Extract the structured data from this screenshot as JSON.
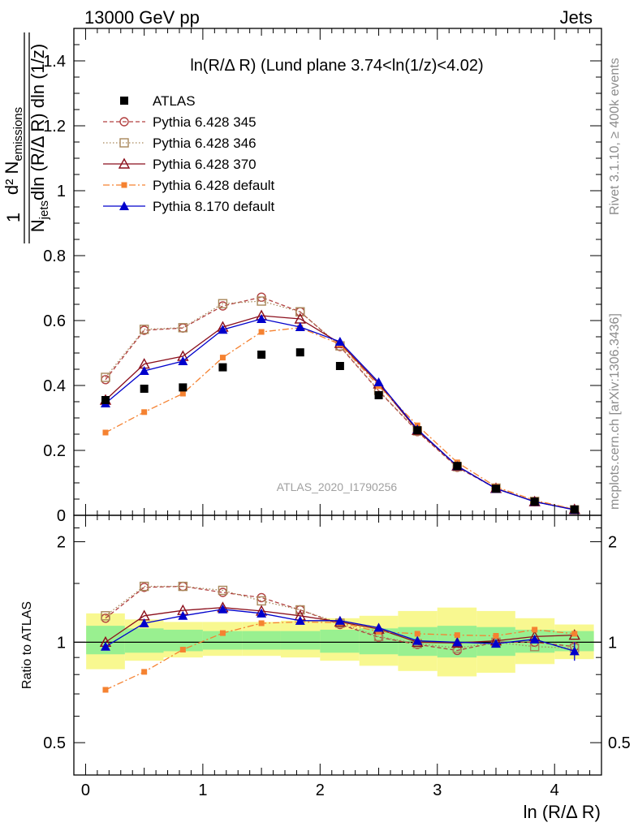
{
  "header": {
    "left": "13000 GeV pp",
    "right": "Jets"
  },
  "side": {
    "rivet": "Rivet 3.1.10, ≥ 400k events",
    "mcplots": "mcplots.cern.ch [arXiv:1306.3436]"
  },
  "analysis_id": "ATLAS_2020_I1790256",
  "colors": {
    "atlas": "#000000",
    "p345": "#b24040",
    "p346": "#a8875a",
    "p370": "#8b0f1c",
    "p6def": "#f58231",
    "p8def": "#0000cc",
    "band_inner": "#99f090",
    "band_outer": "#f8f890"
  },
  "chart_data": [
    {
      "type": "line",
      "title": "ln(R/Δ R) (Lund plane 3.74<ln(1/z)<4.02)",
      "ylabel_fraction_num": "d² N",
      "ylabel_num_sub": "emissions",
      "ylabel_fraction_den_a": "N",
      "ylabel_den_sub": "jets",
      "ylabel_fraction_den_b": "dln (R/Δ R) dln (1/z)",
      "ylabel_one": "1",
      "xlabel": "ln (R/Δ R)",
      "xlim": [
        -0.1,
        4.4
      ],
      "ylim": [
        0,
        1.5
      ],
      "yticks": [
        "0",
        "0.2",
        "0.4",
        "0.6",
        "0.8",
        "1",
        "1.2",
        "1.4"
      ],
      "x": [
        0.17,
        0.5,
        0.83,
        1.17,
        1.5,
        1.83,
        2.17,
        2.5,
        2.83,
        3.17,
        3.5,
        3.83,
        4.17
      ],
      "legend": [
        "ATLAS",
        "Pythia 6.428 345",
        "Pythia 6.428 346",
        "Pythia 6.428 370",
        "Pythia 6.428 default",
        "Pythia 8.170 default"
      ],
      "series": [
        {
          "name": "ATLAS",
          "values": [
            0.355,
            0.39,
            0.394,
            0.456,
            0.495,
            0.502,
            0.46,
            0.37,
            0.262,
            0.152,
            0.082,
            0.042,
            0.018
          ]
        },
        {
          "name": "Pythia 6.428 345",
          "values": [
            0.418,
            0.57,
            0.577,
            0.645,
            0.672,
            0.627,
            0.52,
            0.383,
            0.258,
            0.148,
            0.083,
            0.042,
            0.017
          ]
        },
        {
          "name": "Pythia 6.428 346",
          "values": [
            0.425,
            0.573,
            0.578,
            0.652,
            0.66,
            0.627,
            0.522,
            0.385,
            0.26,
            0.15,
            0.084,
            0.043,
            0.017
          ]
        },
        {
          "name": "Pythia 6.428 370",
          "values": [
            0.355,
            0.466,
            0.49,
            0.58,
            0.615,
            0.605,
            0.53,
            0.405,
            0.262,
            0.152,
            0.083,
            0.042,
            0.018
          ]
        },
        {
          "name": "Pythia 6.428 default",
          "values": [
            0.255,
            0.318,
            0.375,
            0.486,
            0.565,
            0.578,
            0.527,
            0.398,
            0.277,
            0.163,
            0.088,
            0.046,
            0.019
          ]
        },
        {
          "name": "Pythia 8.170 default",
          "values": [
            0.345,
            0.445,
            0.475,
            0.572,
            0.605,
            0.58,
            0.535,
            0.41,
            0.265,
            0.152,
            0.082,
            0.042,
            0.017
          ]
        }
      ]
    },
    {
      "type": "line",
      "ylabel": "Ratio to ATLAS",
      "xlabel": "ln (R/Δ R)",
      "xlim": [
        -0.1,
        4.4
      ],
      "ylim": [
        0.4,
        2.4
      ],
      "yscale": "log",
      "yticks": [
        "0.5",
        "1",
        "2"
      ],
      "xticks": [
        "0",
        "1",
        "2",
        "3",
        "4"
      ],
      "x": [
        0.17,
        0.5,
        0.83,
        1.17,
        1.5,
        1.83,
        2.17,
        2.5,
        2.83,
        3.17,
        3.5,
        3.83,
        4.17
      ],
      "band_inner": [
        [
          0.92,
          1.12
        ],
        [
          0.93,
          1.1
        ],
        [
          0.94,
          1.09
        ],
        [
          0.95,
          1.08
        ],
        [
          0.95,
          1.08
        ],
        [
          0.95,
          1.08
        ],
        [
          0.93,
          1.09
        ],
        [
          0.92,
          1.1
        ],
        [
          0.91,
          1.11
        ],
        [
          0.9,
          1.12
        ],
        [
          0.91,
          1.11
        ],
        [
          0.93,
          1.09
        ],
        [
          0.94,
          1.08
        ]
      ],
      "band_outer": [
        [
          0.83,
          1.22
        ],
        [
          0.88,
          1.17
        ],
        [
          0.9,
          1.15
        ],
        [
          0.91,
          1.15
        ],
        [
          0.91,
          1.15
        ],
        [
          0.9,
          1.16
        ],
        [
          0.88,
          1.18
        ],
        [
          0.85,
          1.2
        ],
        [
          0.82,
          1.24
        ],
        [
          0.79,
          1.27
        ],
        [
          0.81,
          1.24
        ],
        [
          0.86,
          1.18
        ],
        [
          0.89,
          1.13
        ]
      ],
      "series": [
        {
          "name": "Pythia 6.428 345",
          "values": [
            1.18,
            1.46,
            1.47,
            1.41,
            1.36,
            1.25,
            1.13,
            1.035,
            0.985,
            0.945,
            1.0,
            1.0,
            0.97
          ]
        },
        {
          "name": "Pythia 6.428 346",
          "values": [
            1.2,
            1.47,
            1.47,
            1.43,
            1.33,
            1.25,
            1.14,
            1.04,
            0.99,
            0.96,
            1.0,
            0.97,
            0.96
          ]
        },
        {
          "name": "Pythia 6.428 370",
          "values": [
            1.0,
            1.2,
            1.245,
            1.27,
            1.24,
            1.2,
            1.15,
            1.095,
            1.0,
            0.995,
            1.01,
            1.04,
            1.05
          ]
        },
        {
          "name": "Pythia 6.428 default",
          "values": [
            0.72,
            0.815,
            0.95,
            1.065,
            1.14,
            1.15,
            1.145,
            1.075,
            1.06,
            1.05,
            1.045,
            1.09,
            1.06
          ]
        },
        {
          "name": "Pythia 8.170 default",
          "values": [
            0.97,
            1.14,
            1.2,
            1.255,
            1.22,
            1.16,
            1.16,
            1.105,
            1.01,
            1.0,
            0.99,
            1.02,
            0.94
          ]
        }
      ]
    }
  ]
}
